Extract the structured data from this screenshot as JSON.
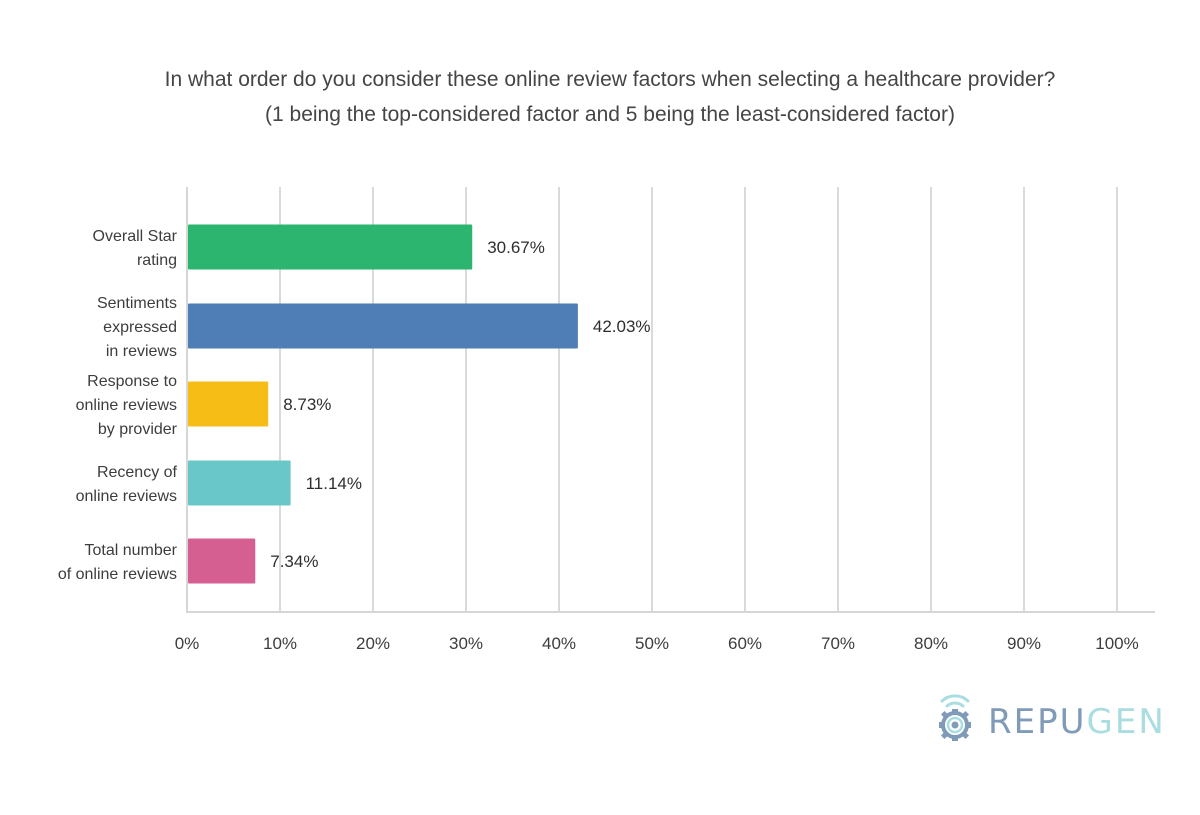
{
  "title_line1": "In what order do you consider these online review factors when selecting a healthcare provider?",
  "title_line2": "(1 being the top-considered factor and 5 being the least-considered factor)",
  "logo": {
    "text_part1": "REPU",
    "text_part2": "GEN",
    "icon": "repugen-signal-gear-icon"
  },
  "chart_data": {
    "type": "bar",
    "orientation": "horizontal",
    "categories": [
      [
        "Overall Star",
        "rating"
      ],
      [
        "Sentiments",
        "expressed",
        "in reviews"
      ],
      [
        "Response to",
        "online reviews",
        "by provider"
      ],
      [
        "Recency of",
        "online reviews"
      ],
      [
        "Total number",
        "of online reviews"
      ]
    ],
    "values": [
      30.67,
      42.03,
      8.73,
      11.14,
      7.34
    ],
    "data_labels": [
      "30.67%",
      "42.03%",
      "8.73%",
      "11.14%",
      "7.34%"
    ],
    "colors": [
      "#2bb56e",
      "#4f7db5",
      "#f6bd17",
      "#6ac7c9",
      "#d45f90"
    ],
    "xlim": [
      0,
      100
    ],
    "x_ticks": [
      0,
      10,
      20,
      30,
      40,
      50,
      60,
      70,
      80,
      90,
      100
    ],
    "x_tick_labels": [
      "0%",
      "10%",
      "20%",
      "30%",
      "40%",
      "50%",
      "60%",
      "70%",
      "80%",
      "90%",
      "100%"
    ],
    "grid": true,
    "legend": "none"
  }
}
